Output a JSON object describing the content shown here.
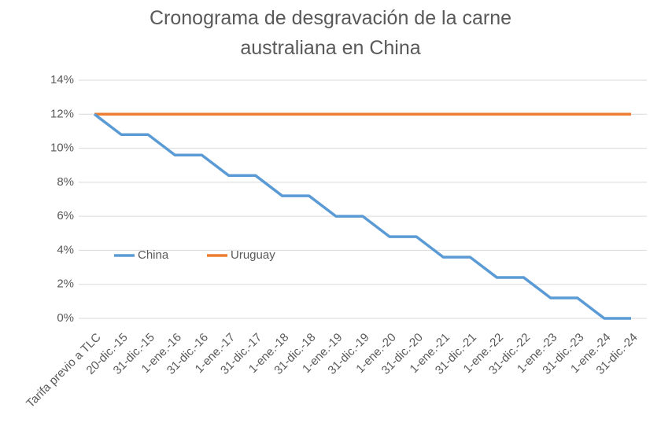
{
  "chart_data": {
    "type": "line",
    "title": "Cronograma de desgravación de la carne australiana en China",
    "categories": [
      "Tarifa previo a TLC",
      "20-dic.-15",
      "31-dic.-15",
      "1-ene.-16",
      "31-dic.-16",
      "1-ene.-17",
      "31-dic.-17",
      "1-ene.-18",
      "31-dic.-18",
      "1-ene.-19",
      "31-dic.-19",
      "1-ene.-20",
      "31-dic.-20",
      "1-ene.-21",
      "31-dic.-21",
      "1-ene.-22",
      "31-dic.-22",
      "1-ene.-23",
      "31-dic.-23",
      "1-ene.-24",
      "31-dic.-24"
    ],
    "series": [
      {
        "name": "China",
        "color": "#5b9bd5",
        "values": [
          12,
          10.8,
          10.8,
          9.6,
          9.6,
          8.4,
          8.4,
          7.2,
          7.2,
          6,
          6,
          4.8,
          4.8,
          3.6,
          3.6,
          2.4,
          2.4,
          1.2,
          1.2,
          0,
          0
        ]
      },
      {
        "name": "Uruguay",
        "color": "#ed7d31",
        "values": [
          12,
          12,
          12,
          12,
          12,
          12,
          12,
          12,
          12,
          12,
          12,
          12,
          12,
          12,
          12,
          12,
          12,
          12,
          12,
          12,
          12
        ]
      }
    ],
    "ylim": [
      0,
      14
    ],
    "yticks": [
      {
        "value": 0,
        "label": "0%"
      },
      {
        "value": 2,
        "label": "2%"
      },
      {
        "value": 4,
        "label": "4%"
      },
      {
        "value": 6,
        "label": "6%"
      },
      {
        "value": 8,
        "label": "8%"
      },
      {
        "value": 10,
        "label": "10%"
      },
      {
        "value": 12,
        "label": "12%"
      },
      {
        "value": 14,
        "label": "14%"
      }
    ],
    "grid": true,
    "legend": "inside-left"
  }
}
